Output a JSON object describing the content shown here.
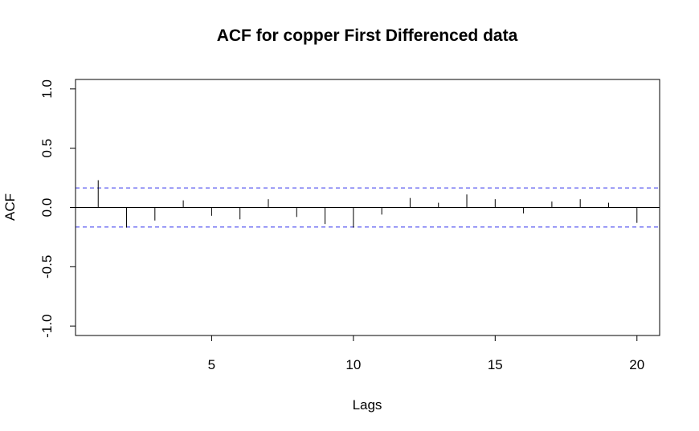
{
  "chart_data": {
    "type": "bar",
    "title": "ACF for copper First Differenced data",
    "xlabel": "Lags",
    "ylabel": "ACF",
    "xlim": [
      0.2,
      20.8
    ],
    "ylim": [
      -1.08,
      1.08
    ],
    "x_ticks": [
      5,
      10,
      15,
      20
    ],
    "x_tick_labels": [
      "5",
      "10",
      "15",
      "20"
    ],
    "y_ticks": [
      -1.0,
      -0.5,
      0.0,
      0.5,
      1.0
    ],
    "y_tick_labels": [
      "-1.0",
      "-0.5",
      "0.0",
      "0.5",
      "1.0"
    ],
    "lags": [
      1,
      2,
      3,
      4,
      5,
      6,
      7,
      8,
      9,
      10,
      11,
      12,
      13,
      14,
      15,
      16,
      17,
      18,
      19,
      20
    ],
    "acf": [
      0.23,
      -0.17,
      -0.11,
      0.06,
      -0.07,
      -0.1,
      0.07,
      -0.08,
      -0.14,
      -0.17,
      -0.06,
      0.08,
      0.04,
      0.11,
      0.07,
      -0.05,
      0.05,
      0.07,
      0.04,
      -0.13
    ],
    "confidence_bounds": [
      0.165,
      -0.165
    ],
    "colors": {
      "bars": "#000000",
      "bounds": "#3333ee",
      "frame": "#000000"
    },
    "grid": false,
    "legend": "none"
  }
}
